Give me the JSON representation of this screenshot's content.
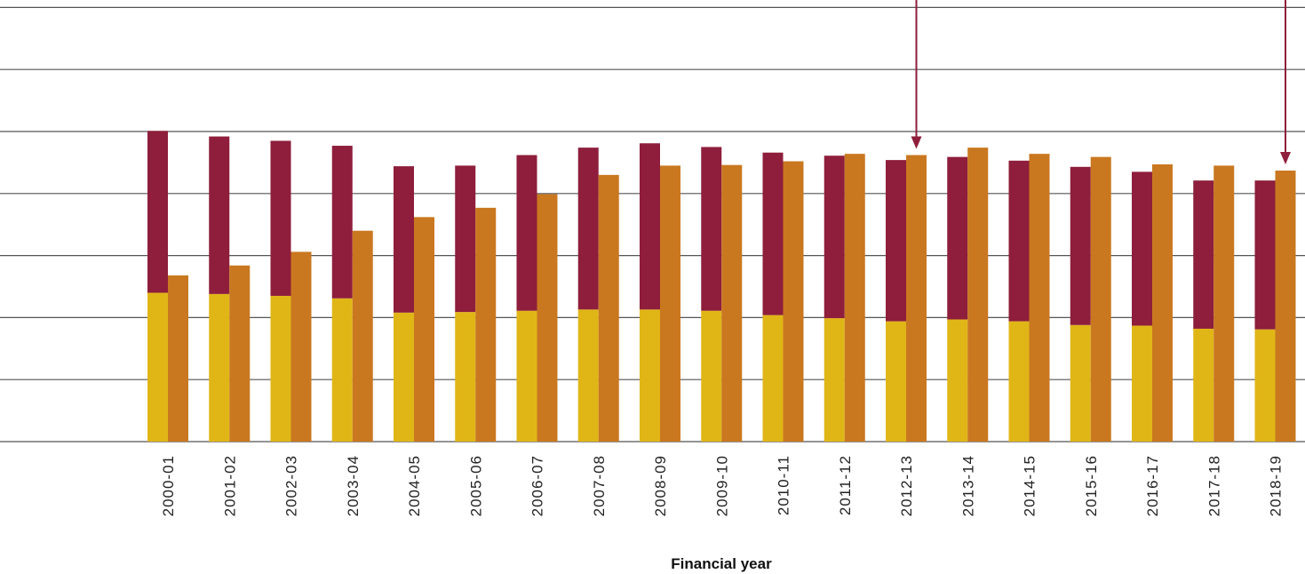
{
  "chart_data": {
    "type": "bar",
    "xlabel": "Financial year",
    "ylabel": "",
    "categories": [
      "2000-01",
      "2001-02",
      "2002-03",
      "2003-04",
      "2004-05",
      "2005-06",
      "2006-07",
      "2007-08",
      "2008-09",
      "2009-10",
      "2010-11",
      "2011-12",
      "2012-13",
      "2013-14",
      "2014-15",
      "2015-16",
      "2016-17",
      "2017-18",
      "2018-19"
    ],
    "stacked_bar": {
      "segments": [
        {
          "color": "#E0B617",
          "values": [
            2.4,
            2.38,
            2.35,
            2.31,
            2.08,
            2.09,
            2.11,
            2.13,
            2.13,
            2.11,
            2.04,
            1.99,
            1.94,
            1.97,
            1.94,
            1.88,
            1.87,
            1.82,
            1.81
          ]
        },
        {
          "color": "#8E1E3B",
          "values": [
            2.61,
            2.54,
            2.5,
            2.46,
            2.36,
            2.36,
            2.51,
            2.61,
            2.68,
            2.64,
            2.62,
            2.62,
            2.6,
            2.62,
            2.59,
            2.55,
            2.48,
            2.39,
            2.4
          ]
        }
      ],
      "totals": [
        5.01,
        4.92,
        4.85,
        4.77,
        4.44,
        4.45,
        4.62,
        4.74,
        4.81,
        4.75,
        4.66,
        4.61,
        4.54,
        4.59,
        4.53,
        4.43,
        4.35,
        4.21,
        4.21
      ]
    },
    "single_bar": {
      "color": "#C97820",
      "values": [
        2.68,
        2.84,
        3.06,
        3.4,
        3.62,
        3.77,
        3.99,
        4.3,
        4.45,
        4.46,
        4.52,
        4.64,
        4.62,
        4.74,
        4.64,
        4.59,
        4.47,
        4.45,
        4.37
      ]
    },
    "ylim": [
      0,
      7.2
    ],
    "gridlines": [
      0,
      1,
      2,
      3,
      4,
      5,
      6,
      7
    ],
    "grid": true,
    "axis_line_color": "#555555",
    "annotations": [
      {
        "type": "arrow",
        "target_category": "2012-13",
        "color": "#8E1E3B"
      },
      {
        "type": "arrow",
        "target_category": "2018-19",
        "color": "#8E1E3B"
      }
    ]
  }
}
